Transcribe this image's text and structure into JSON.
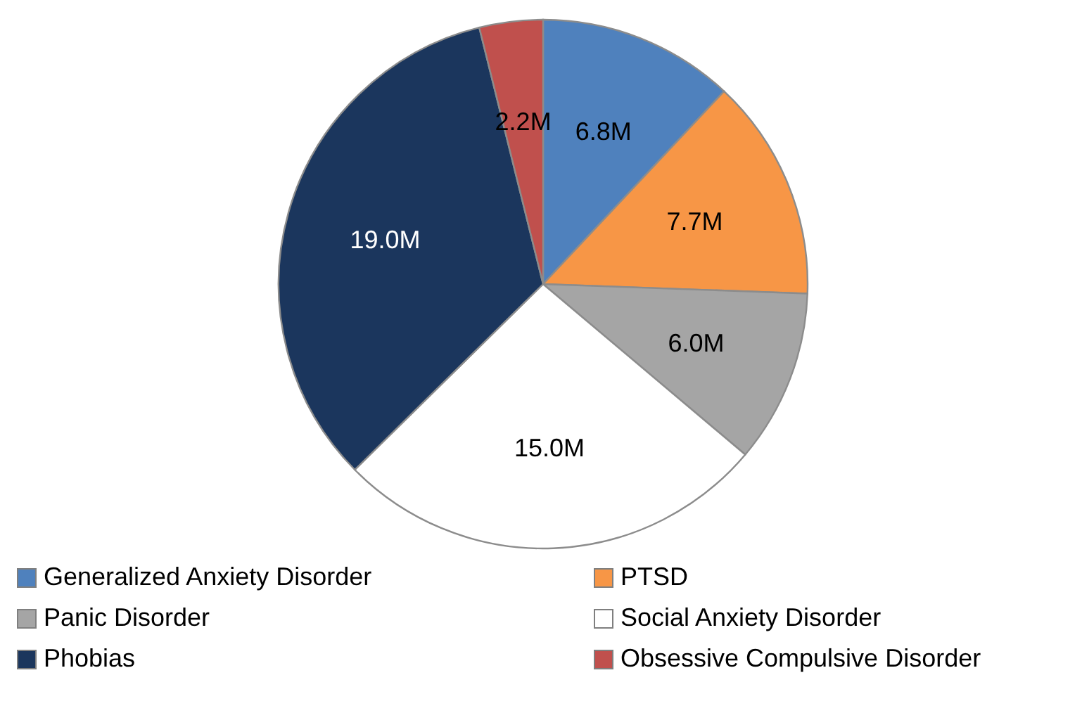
{
  "chart_data": {
    "type": "pie",
    "categories": [
      "Generalized Anxiety Disorder",
      "PTSD",
      "Panic Disorder",
      "Social Anxiety Disorder",
      "Phobias",
      "Obsessive Compulsive Disorder"
    ],
    "values": [
      6.8,
      7.7,
      6.0,
      15.0,
      19.0,
      2.2
    ],
    "value_labels": [
      "6.8M",
      "7.7M",
      "6.0M",
      "15.0M",
      "19.0M",
      "2.2M"
    ],
    "colors": [
      "#4f81bd",
      "#f79646",
      "#a5a5a5",
      "#ffffff",
      "#1b365d",
      "#c0504d"
    ],
    "legend": "bottom"
  }
}
